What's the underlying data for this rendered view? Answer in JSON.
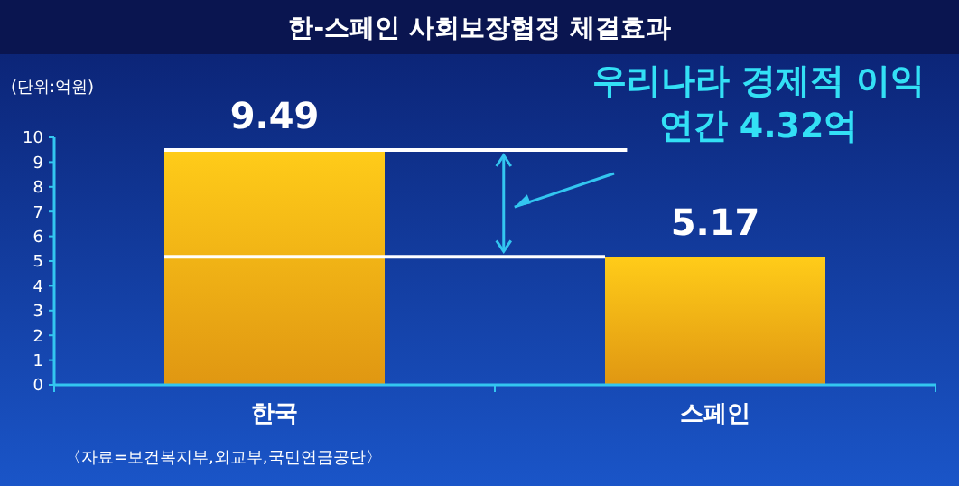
{
  "chart_data": {
    "type": "bar",
    "title": "한-스페인 사회보장협정 체결효과",
    "ylabel": "(단위:억원)",
    "categories": [
      "한국",
      "스페인"
    ],
    "values": [
      9.49,
      5.17
    ],
    "color": "#f5a514",
    "data_labels": true,
    "ylim": [
      0,
      10
    ],
    "yticks": [
      0,
      1,
      2,
      3,
      4,
      5,
      6,
      7,
      8,
      9,
      10
    ],
    "grid": false,
    "ref_lines": [
      {
        "axis": "y",
        "value": 9.49,
        "color": "#ffffff"
      },
      {
        "axis": "y",
        "value": 5.17,
        "color": "#ffffff"
      }
    ],
    "annotations": [
      "우리나라 경제적 이익",
      "연간 4.32억",
      "〈자료=보건복지부,외교부,국민연금공단〉"
    ]
  }
}
